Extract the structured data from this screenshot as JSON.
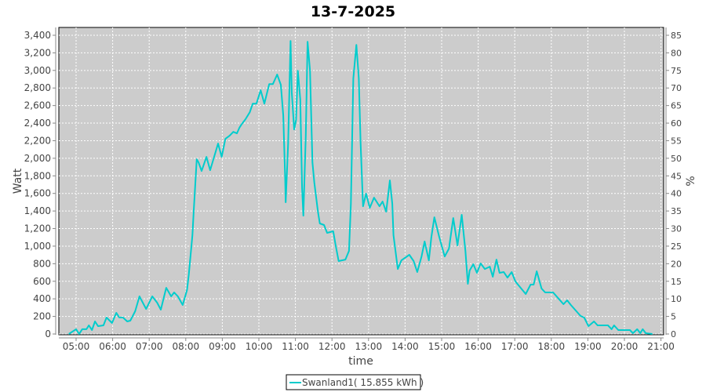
{
  "chart_data": {
    "type": "line",
    "title": "13-7-2025",
    "xlabel": "time",
    "ylabel": "Watt",
    "y2label": "%",
    "xlim": [
      "04:35",
      "21:00"
    ],
    "ylim": [
      0,
      3400
    ],
    "y2lim": [
      0,
      85
    ],
    "x_ticks": [
      "05:00",
      "06:00",
      "07:00",
      "08:00",
      "09:00",
      "10:00",
      "11:00",
      "12:00",
      "13:00",
      "14:00",
      "15:00",
      "16:00",
      "17:00",
      "18:00",
      "19:00",
      "20:00",
      "21:00"
    ],
    "y_ticks": [
      "0",
      "200",
      "400",
      "600",
      "800",
      "1,000",
      "1,200",
      "1,400",
      "1,600",
      "1,800",
      "2,000",
      "2,200",
      "2,400",
      "2,600",
      "2,800",
      "3,000",
      "3,200",
      "3,400"
    ],
    "y2_ticks": [
      "0",
      "5",
      "10",
      "15",
      "20",
      "25",
      "30",
      "35",
      "40",
      "45",
      "50",
      "55",
      "60",
      "65",
      "70",
      "75",
      "80",
      "85"
    ],
    "grid": true,
    "legend_position": "bottom",
    "colors": {
      "series": "#00cccc",
      "plot_background": "#cccccc",
      "grid": "#ffffff"
    },
    "series": [
      {
        "name": "Swanland1( 15.855 kWh )",
        "x": [
          "04:48",
          "05:00",
          "05:05",
          "05:10",
          "05:17",
          "05:21",
          "05:26",
          "05:31",
          "05:36",
          "05:45",
          "05:50",
          "05:59",
          "06:06",
          "06:11",
          "06:17",
          "06:24",
          "06:29",
          "06:37",
          "06:44",
          "06:55",
          "07:05",
          "07:13",
          "07:19",
          "07:28",
          "07:36",
          "07:41",
          "07:47",
          "07:55",
          "08:02",
          "08:05",
          "08:11",
          "08:13",
          "08:18",
          "08:21",
          "08:26",
          "08:34",
          "08:40",
          "08:53",
          "08:59",
          "09:05",
          "09:12",
          "09:18",
          "09:24",
          "09:28",
          "09:32",
          "09:38",
          "09:45",
          "09:50",
          "09:56",
          "10:03",
          "10:09",
          "10:17",
          "10:23",
          "10:30",
          "10:36",
          "10:40",
          "10:43",
          "10:44",
          "10:48",
          "10:52",
          "10:54",
          "10:58",
          "11:01",
          "11:04",
          "11:08",
          "11:11",
          "11:13",
          "11:17",
          "11:20",
          "11:24",
          "11:28",
          "11:31",
          "11:37",
          "11:40",
          "11:47",
          "11:52",
          "12:02",
          "12:06",
          "12:11",
          "12:22",
          "12:28",
          "12:31",
          "12:35",
          "12:40",
          "12:44",
          "12:47",
          "12:51",
          "12:56",
          "13:02",
          "13:09",
          "13:18",
          "13:23",
          "13:29",
          "13:35",
          "13:39",
          "13:41",
          "13:48",
          "13:54",
          "14:07",
          "14:14",
          "14:20",
          "14:27",
          "14:32",
          "14:39",
          "14:43",
          "14:48",
          "14:56",
          "15:05",
          "15:12",
          "15:19",
          "15:26",
          "15:33",
          "15:39",
          "15:43",
          "15:46",
          "15:52",
          "15:58",
          "16:04",
          "16:11",
          "16:19",
          "16:24",
          "16:30",
          "16:35",
          "16:42",
          "16:48",
          "16:55",
          "17:01",
          "17:18",
          "17:26",
          "17:31",
          "17:36",
          "17:44",
          "17:50",
          "18:03",
          "18:20",
          "18:26",
          "18:32",
          "18:48",
          "18:54",
          "19:01",
          "19:10",
          "19:16",
          "19:33",
          "19:39",
          "19:43",
          "19:50",
          "20:09",
          "20:14",
          "20:21",
          "20:26",
          "20:30",
          "20:35",
          "20:46"
        ],
        "values": [
          0,
          54,
          0,
          54,
          54,
          98,
          45,
          143,
          89,
          98,
          187,
          125,
          241,
          187,
          187,
          143,
          152,
          259,
          428,
          285,
          428,
          357,
          277,
          526,
          428,
          473,
          428,
          330,
          500,
          678,
          1124,
          1392,
          1989,
          1953,
          1855,
          2016,
          1864,
          2168,
          2016,
          2221,
          2257,
          2301,
          2284,
          2346,
          2391,
          2444,
          2524,
          2622,
          2622,
          2774,
          2622,
          2845,
          2845,
          2953,
          2837,
          2489,
          1811,
          1499,
          2168,
          3336,
          2756,
          2328,
          2435,
          2997,
          2667,
          1659,
          1347,
          2257,
          3327,
          2997,
          1953,
          1722,
          1392,
          1258,
          1240,
          1151,
          1169,
          1008,
          830,
          847,
          946,
          1481,
          2908,
          3291,
          2908,
          2168,
          1454,
          1597,
          1436,
          1552,
          1454,
          1507,
          1392,
          1748,
          1481,
          1124,
          740,
          838,
          901,
          830,
          705,
          883,
          1053,
          838,
          1097,
          1329,
          1106,
          883,
          972,
          1320,
          1008,
          1356,
          946,
          571,
          723,
          794,
          696,
          803,
          740,
          767,
          651,
          847,
          696,
          705,
          642,
          705,
          598,
          455,
          562,
          562,
          714,
          517,
          473,
          473,
          339,
          384,
          330,
          205,
          187,
          89,
          143,
          98,
          98,
          54,
          98,
          45,
          45,
          9,
          54,
          9,
          54,
          9,
          0
        ]
      }
    ]
  }
}
